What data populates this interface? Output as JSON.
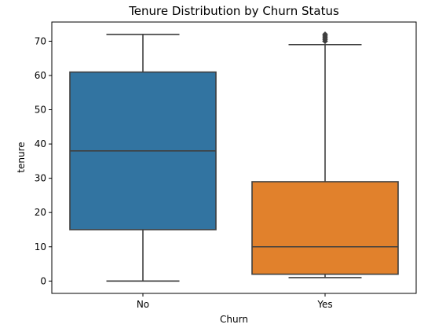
{
  "chart_data": {
    "type": "box",
    "title": "Tenure Distribution by Churn Status",
    "xlabel": "Churn",
    "ylabel": "tenure",
    "categories": [
      "No",
      "Yes"
    ],
    "ylim": [
      -3.6,
      75.6
    ],
    "yticks": [
      0,
      10,
      20,
      30,
      40,
      50,
      60,
      70
    ],
    "grid": false,
    "boxes": [
      {
        "category": "No",
        "whisker_low": 0,
        "q1": 15,
        "median": 38,
        "q3": 61,
        "whisker_high": 72,
        "outliers": [],
        "color": "#3274a1"
      },
      {
        "category": "Yes",
        "whisker_low": 1,
        "q1": 2,
        "median": 10,
        "q3": 29,
        "whisker_high": 69,
        "outliers": [
          70,
          70.5,
          71,
          71.5,
          72
        ],
        "color": "#e1812c"
      }
    ]
  }
}
